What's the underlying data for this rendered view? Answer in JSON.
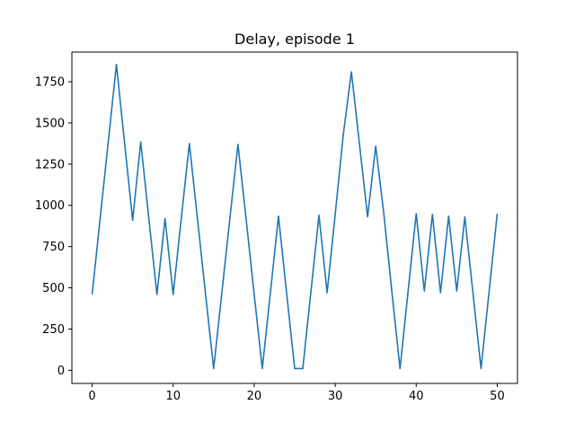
{
  "chart_data": {
    "type": "line",
    "title": "Delay, episode 1",
    "xlabel": "",
    "ylabel": "",
    "xlim": [
      -2.5,
      52.5
    ],
    "ylim": [
      -80,
      1930
    ],
    "grid": false,
    "x_ticks": [
      0,
      10,
      20,
      30,
      40,
      50
    ],
    "y_ticks": [
      0,
      250,
      500,
      750,
      1000,
      1250,
      1500,
      1750
    ],
    "color": "#1f77b4",
    "series": [
      {
        "x": [
          0,
          1,
          2,
          3,
          4,
          5,
          6,
          7,
          8,
          9,
          10,
          11,
          12,
          13,
          14,
          15,
          16,
          17,
          18,
          19,
          20,
          21,
          22,
          23,
          24,
          25,
          26,
          27,
          28,
          29,
          30,
          31,
          32,
          33,
          34,
          35,
          36,
          37,
          38,
          39,
          40,
          41,
          42,
          43,
          44,
          45,
          46,
          47,
          48,
          49,
          50
        ],
        "y": [
          460,
          925,
          1390,
          1855,
          1380,
          910,
          1385,
          920,
          460,
          920,
          460,
          920,
          1375,
          920,
          460,
          10,
          465,
          920,
          1370,
          920,
          460,
          10,
          470,
          935,
          470,
          10,
          10,
          475,
          940,
          470,
          945,
          1430,
          1810,
          1370,
          930,
          1360,
          950,
          475,
          10,
          480,
          950,
          480,
          945,
          470,
          935,
          480,
          930,
          470,
          10,
          480,
          950
        ]
      }
    ]
  }
}
